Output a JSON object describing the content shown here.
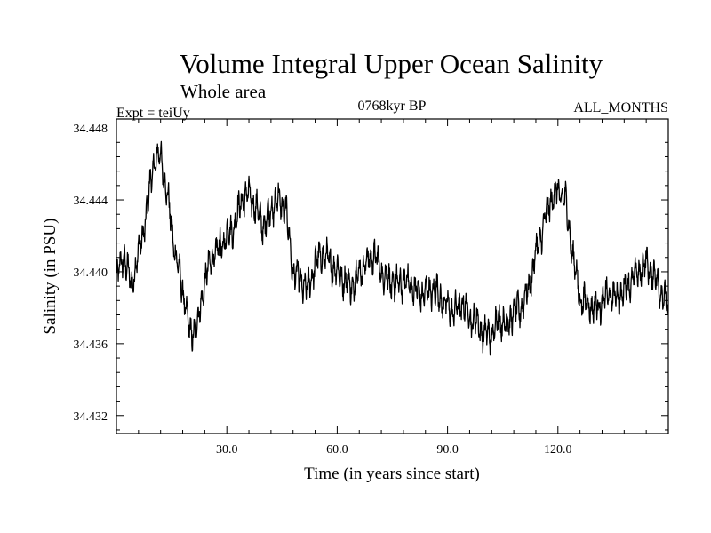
{
  "chart_data": {
    "type": "line",
    "title": "Volume Integral Upper Ocean Salinity",
    "subtitle": "Whole area",
    "experiment": "Expt = teiUy",
    "period": "0768kyr BP",
    "season": "ALL_MONTHS",
    "xlabel": "Time (in years since start)",
    "ylabel": "Salinity (in PSU)",
    "xlim": [
      0,
      150
    ],
    "ylim": [
      34.431,
      34.4485
    ],
    "x_ticks": [
      30,
      60,
      90,
      120
    ],
    "x_tick_labels": [
      "30.0",
      "60.0",
      "90.0",
      "120.0"
    ],
    "y_ticks": [
      34.432,
      34.436,
      34.44,
      34.444,
      34.448
    ],
    "y_tick_labels": [
      "34.432",
      "34.436",
      "34.440",
      "34.444",
      "34.448"
    ],
    "grid": false,
    "series": [
      {
        "name": "Salinity",
        "sampling": "monthly",
        "x": [
          0,
          2,
          4,
          6,
          8,
          10,
          12,
          14,
          16,
          18,
          20,
          22,
          24,
          26,
          28,
          30,
          32,
          34,
          36,
          38,
          40,
          42,
          44,
          46,
          48,
          50,
          52,
          54,
          56,
          58,
          60,
          62,
          64,
          66,
          68,
          70,
          72,
          74,
          76,
          78,
          80,
          82,
          84,
          86,
          88,
          90,
          92,
          94,
          96,
          98,
          100,
          102,
          104,
          106,
          108,
          110,
          112,
          114,
          116,
          118,
          120,
          122,
          124,
          126,
          128,
          130,
          132,
          134,
          136,
          138,
          140,
          142,
          144,
          146,
          148,
          150
        ],
        "y": [
          34.4395,
          34.441,
          34.4392,
          34.441,
          34.443,
          34.446,
          34.4465,
          34.444,
          34.441,
          34.439,
          34.4365,
          34.437,
          34.4395,
          34.4408,
          34.4413,
          34.442,
          34.4425,
          34.444,
          34.4443,
          34.4435,
          34.4425,
          34.4435,
          34.444,
          34.4435,
          34.44,
          34.4395,
          34.439,
          34.4405,
          34.441,
          34.4405,
          34.44,
          34.4395,
          34.4392,
          34.44,
          34.4405,
          34.441,
          34.44,
          34.4395,
          34.4392,
          34.4395,
          34.4393,
          34.4388,
          34.4388,
          34.439,
          34.4386,
          34.438,
          34.4378,
          34.4383,
          34.4375,
          34.4372,
          34.4365,
          34.4365,
          34.4375,
          34.437,
          34.4378,
          34.438,
          34.439,
          34.441,
          34.4425,
          34.444,
          34.4445,
          34.444,
          34.441,
          34.4385,
          34.4382,
          34.438,
          34.4383,
          34.4388,
          34.4385,
          34.439,
          34.4395,
          34.44,
          34.4405,
          34.4398,
          34.439,
          34.4378
        ]
      }
    ]
  }
}
